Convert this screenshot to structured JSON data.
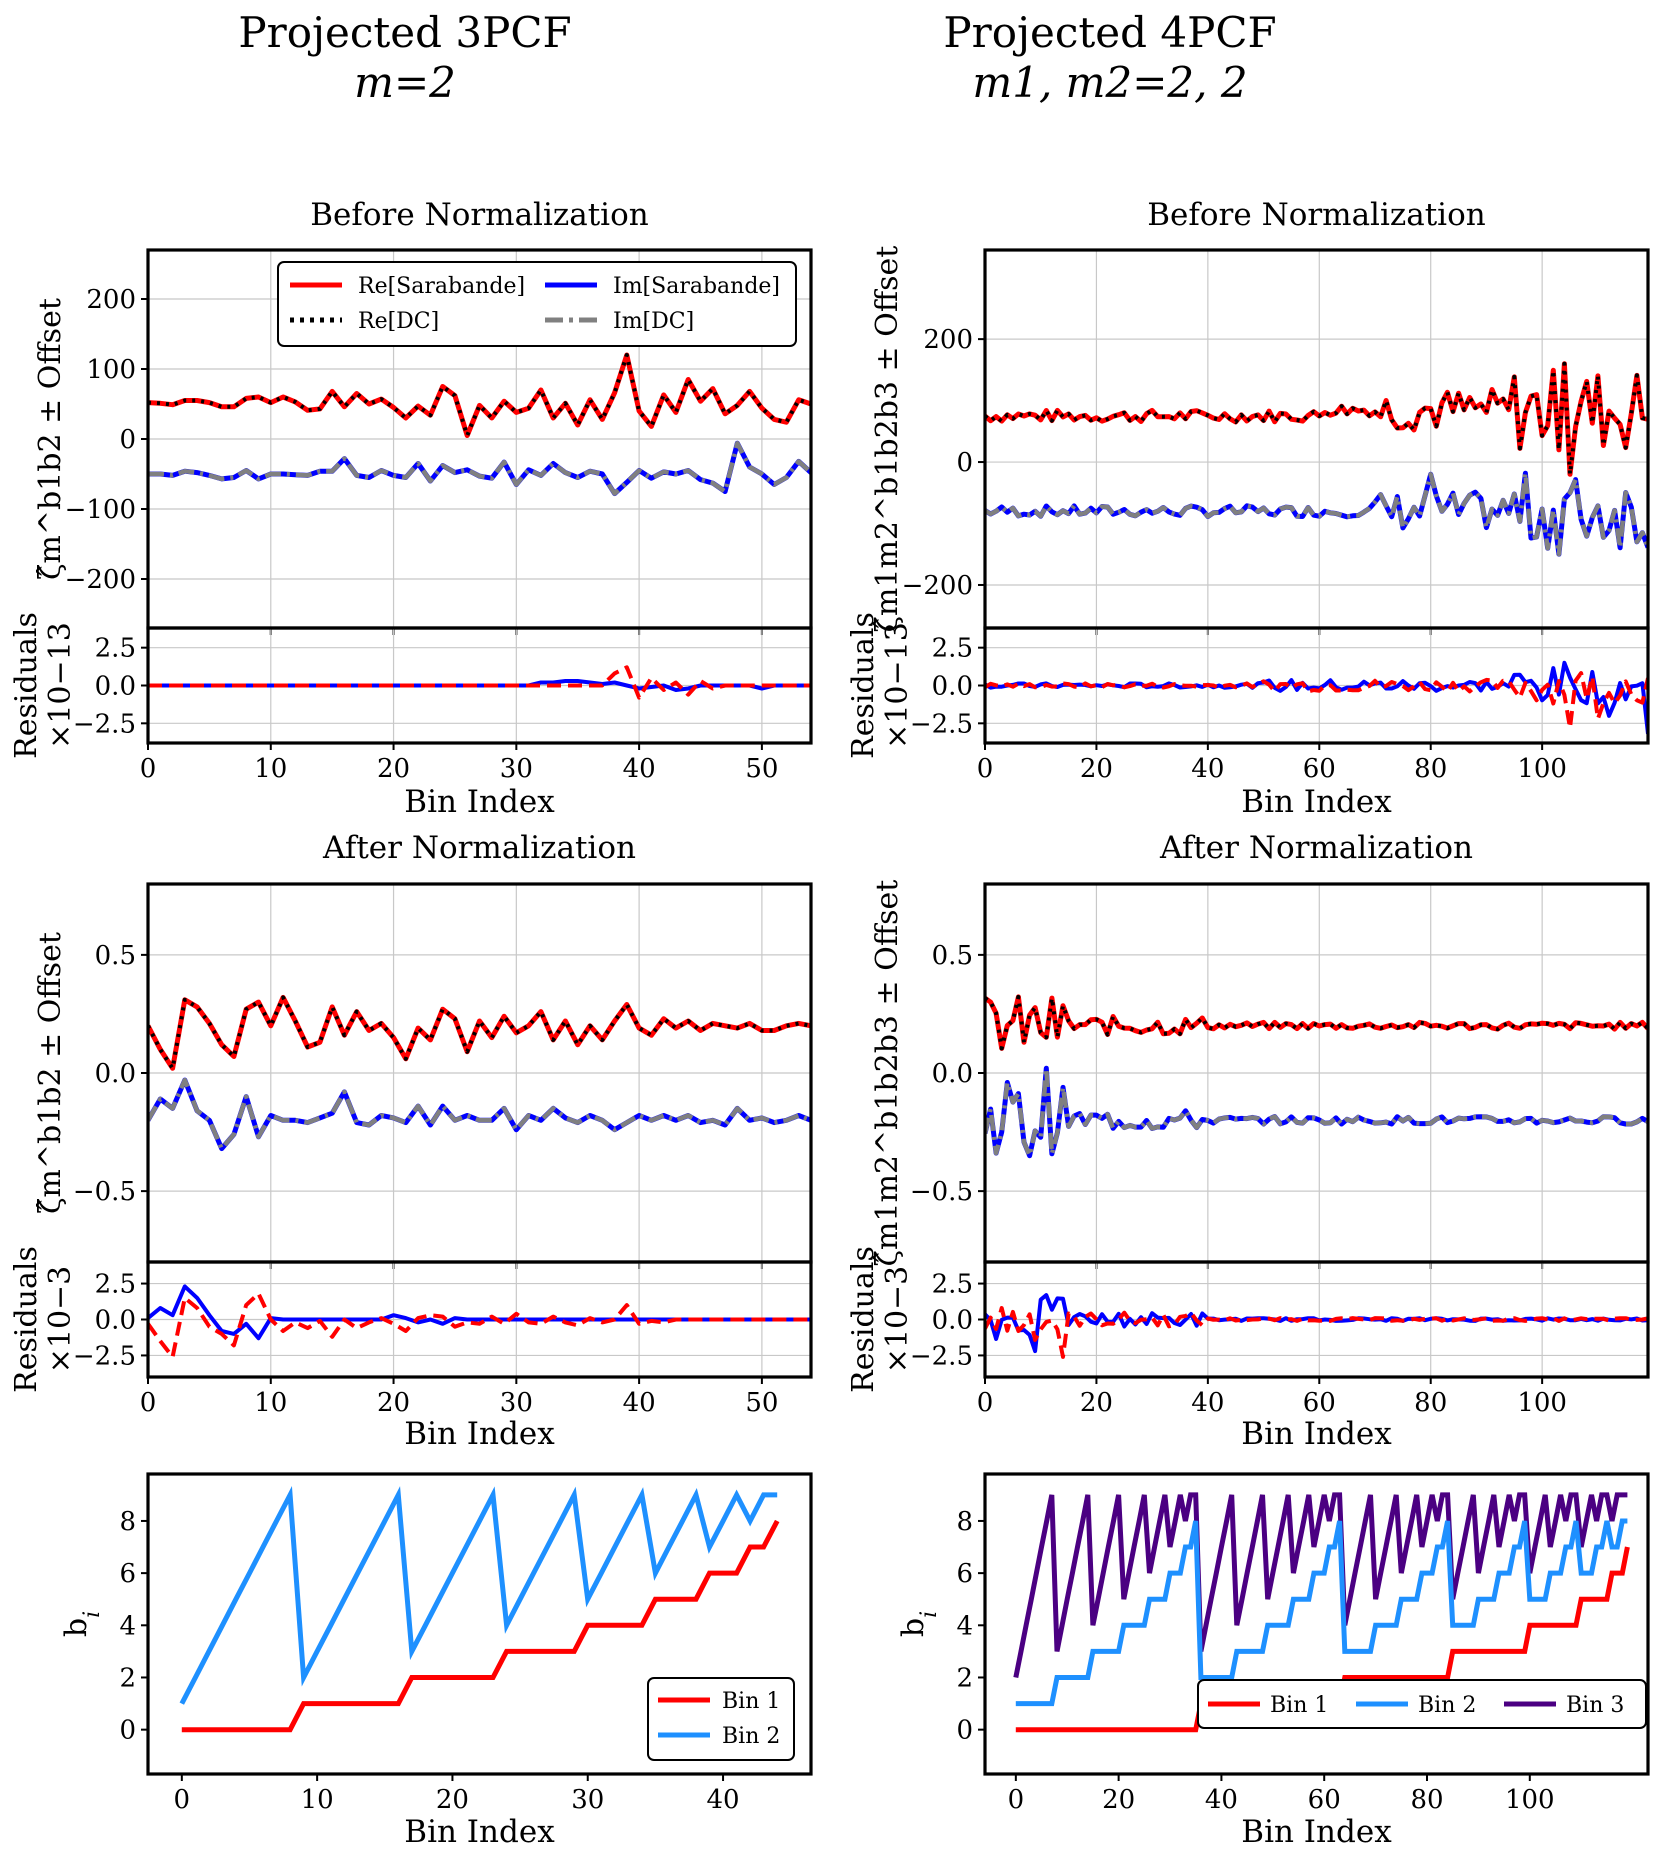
{
  "columns": [
    {
      "title_line1": "Projected 3PCF",
      "title_line2": "m=2"
    },
    {
      "title_line1": "Projected 4PCF",
      "title_line2": "m1, m2=2, 2"
    }
  ],
  "chart_data": [
    {
      "id": "3pcf-before",
      "type": "line",
      "title": "Before Normalization",
      "ylabel": "ζ̂m^b1b2 ± Offset",
      "xlabel": "Bin Index",
      "xlim": [
        0,
        54
      ],
      "ylim": [
        -270,
        270
      ],
      "xticks": [
        0,
        10,
        20,
        30,
        40,
        50
      ],
      "yticks": [
        -200,
        -100,
        0,
        100,
        200
      ],
      "ytick_labels": [
        "−200",
        "−100",
        "0",
        "100",
        "200"
      ],
      "legend": [
        "Re[Sarabande]",
        "Im[Sarabande]",
        "Re[DC]",
        "Im[DC]"
      ],
      "series": [
        {
          "name": "Re[Sarabande]",
          "color": "#ff0000",
          "values": [
            52,
            51,
            49,
            55,
            55,
            52,
            46,
            46,
            58,
            60,
            52,
            60,
            53,
            41,
            43,
            68,
            46,
            65,
            50,
            57,
            45,
            30,
            47,
            34,
            75,
            62,
            5,
            48,
            30,
            54,
            38,
            44,
            70,
            30,
            51,
            20,
            56,
            28,
            66,
            120,
            40,
            18,
            63,
            38,
            85,
            54,
            72,
            36,
            48,
            68,
            44,
            28,
            24,
            56,
            50
          ]
        },
        {
          "name": "Im[Sarabande]",
          "color": "#0000ff",
          "values": [
            -50,
            -50,
            -52,
            -46,
            -48,
            -52,
            -57,
            -55,
            -45,
            -57,
            -50,
            -50,
            -51,
            -52,
            -46,
            -46,
            -28,
            -52,
            -55,
            -45,
            -52,
            -55,
            -35,
            -60,
            -38,
            -48,
            -44,
            -53,
            -56,
            -33,
            -65,
            -44,
            -52,
            -35,
            -48,
            -55,
            -46,
            -50,
            -78,
            -62,
            -45,
            -56,
            -47,
            -50,
            -45,
            -58,
            -63,
            -75,
            -6,
            -40,
            -50,
            -65,
            -55,
            -32,
            -48
          ]
        },
        {
          "name": "Re[DC]",
          "color": "#000000",
          "values": []
        },
        {
          "name": "Im[DC]",
          "color": "#808080",
          "values": []
        }
      ],
      "residual": {
        "ylabel_line1": "Residuals",
        "ylabel_line2": "×10−13",
        "ylim": [
          -3.8,
          3.8
        ],
        "yticks": [
          -2.5,
          0.0,
          2.5
        ],
        "ytick_labels": [
          "−2.5",
          "0.0",
          "2.5"
        ],
        "re": [
          0,
          0,
          0,
          0,
          0,
          0,
          0,
          0,
          0,
          0,
          0,
          0,
          0,
          0,
          0,
          0,
          0,
          0,
          0,
          0,
          0,
          0,
          0,
          0,
          0,
          0,
          0,
          0,
          0,
          0,
          0,
          0,
          0,
          0,
          0,
          0,
          0,
          0,
          0.8,
          1.2,
          -0.8,
          0.5,
          -0.3,
          0.2,
          -0.6,
          0.3,
          -0.2,
          0,
          0,
          0,
          0,
          0,
          0,
          0,
          0
        ],
        "im": [
          0,
          0,
          0,
          0,
          0,
          0,
          0,
          0,
          0,
          0,
          0,
          0,
          0,
          0,
          0,
          0,
          0,
          0,
          0,
          0,
          0,
          0,
          0,
          0,
          0,
          0,
          0,
          0,
          0,
          0,
          0,
          0,
          0.2,
          0.2,
          0.3,
          0.3,
          0.2,
          0.1,
          0.2,
          0,
          -0.2,
          -0.1,
          0,
          -0.3,
          -0.2,
          0,
          0,
          0,
          0,
          0,
          -0.2,
          0,
          0,
          0,
          0
        ]
      }
    },
    {
      "id": "4pcf-before",
      "type": "line",
      "title": "Before Normalization",
      "ylabel": "ζ̂m1m2^b1b2b3 ± Offset",
      "xlabel": "Bin Index",
      "xlim": [
        0,
        119
      ],
      "ylim": [
        -270,
        345
      ],
      "xticks": [
        0,
        20,
        40,
        60,
        80,
        100
      ],
      "yticks": [
        -200,
        0,
        200
      ],
      "ytick_labels": [
        "−200",
        "0",
        "200"
      ],
      "series": [
        {
          "name": "Re[Sarabande]",
          "color": "#ff0000",
          "values": []
        },
        {
          "name": "Im[Sarabande]",
          "color": "#0000ff",
          "values": []
        }
      ],
      "residual": {
        "ylabel_line1": "Residuals",
        "ylabel_line2": "×10−13",
        "ylim": [
          -3.8,
          3.8
        ],
        "yticks": [
          -2.5,
          0.0,
          2.5
        ],
        "ytick_labels": [
          "−2.5",
          "0.0",
          "2.5"
        ],
        "re": [],
        "im": []
      }
    },
    {
      "id": "3pcf-after",
      "type": "line",
      "title": "After Normalization",
      "ylabel": "ζ̂m^b1b2 ± Offset",
      "xlabel": "Bin Index",
      "xlim": [
        0,
        54
      ],
      "ylim": [
        -0.8,
        0.8
      ],
      "xticks": [
        0,
        10,
        20,
        30,
        40,
        50
      ],
      "yticks": [
        -0.5,
        0.0,
        0.5
      ],
      "ytick_labels": [
        "−0.5",
        "0.0",
        "0.5"
      ],
      "series": [
        {
          "name": "Re[Sarabande]",
          "color": "#ff0000",
          "values": [
            0.2,
            0.1,
            0.02,
            0.31,
            0.28,
            0.21,
            0.12,
            0.07,
            0.27,
            0.3,
            0.2,
            0.32,
            0.22,
            0.11,
            0.13,
            0.28,
            0.16,
            0.26,
            0.18,
            0.21,
            0.15,
            0.06,
            0.19,
            0.14,
            0.27,
            0.23,
            0.09,
            0.22,
            0.15,
            0.24,
            0.17,
            0.2,
            0.26,
            0.14,
            0.22,
            0.12,
            0.2,
            0.14,
            0.22,
            0.29,
            0.19,
            0.16,
            0.23,
            0.19,
            0.22,
            0.18,
            0.21,
            0.2,
            0.19,
            0.21,
            0.18,
            0.18,
            0.2,
            0.21,
            0.2
          ]
        },
        {
          "name": "Im[Sarabande]",
          "color": "#0000ff",
          "values": [
            -0.2,
            -0.11,
            -0.15,
            -0.03,
            -0.16,
            -0.2,
            -0.32,
            -0.26,
            -0.1,
            -0.27,
            -0.18,
            -0.2,
            -0.2,
            -0.21,
            -0.19,
            -0.17,
            -0.08,
            -0.21,
            -0.22,
            -0.18,
            -0.19,
            -0.21,
            -0.14,
            -0.22,
            -0.14,
            -0.2,
            -0.18,
            -0.2,
            -0.2,
            -0.15,
            -0.24,
            -0.18,
            -0.2,
            -0.15,
            -0.19,
            -0.21,
            -0.18,
            -0.2,
            -0.24,
            -0.21,
            -0.18,
            -0.2,
            -0.18,
            -0.2,
            -0.18,
            -0.21,
            -0.2,
            -0.22,
            -0.15,
            -0.2,
            -0.19,
            -0.21,
            -0.2,
            -0.18,
            -0.2
          ]
        }
      ],
      "residual": {
        "ylabel_line1": "Residuals",
        "ylabel_line2": "×10−3",
        "ylim": [
          -4.0,
          4.0
        ],
        "yticks": [
          -2.5,
          0.0,
          2.5
        ],
        "ytick_labels": [
          "−2.5",
          "0.0",
          "2.5"
        ],
        "re": [
          -0.3,
          -1.5,
          -2.6,
          1.5,
          0.8,
          -0.5,
          -1.0,
          -1.8,
          1.0,
          1.8,
          0.0,
          -0.8,
          -0.2,
          -0.6,
          -0.1,
          -1.2,
          0.0,
          -0.6,
          -0.2,
          0.1,
          -0.3,
          -0.8,
          0.1,
          0.3,
          0.2,
          -0.5,
          -0.2,
          -0.3,
          0.2,
          -0.3,
          0.4,
          -0.2,
          -0.3,
          0.2,
          -0.2,
          -0.4,
          0.1,
          -0.2,
          0.0,
          1.0,
          -0.3,
          -0.1,
          -0.2,
          0.0,
          0.0,
          0.0,
          0.0,
          0.0,
          0.0,
          0.0,
          0.0,
          0.0,
          0.0,
          0.0,
          0.0
        ],
        "im": [
          0.1,
          0.8,
          0.3,
          2.3,
          1.5,
          0.3,
          -0.8,
          -1.0,
          -0.3,
          -1.3,
          0.1,
          0.0,
          0.0,
          0.0,
          0.0,
          0.0,
          0.0,
          0.0,
          0.0,
          0.0,
          0.3,
          0.1,
          -0.2,
          0.0,
          -0.3,
          0.1,
          0.0,
          0.0,
          0.0,
          0.0,
          0.0,
          0.0,
          0.0,
          0.0,
          0.0,
          0.0,
          0.0,
          0.0,
          0.0,
          0.0,
          0.0,
          0.0,
          0.0,
          0.0,
          0.0,
          0.0,
          0.0,
          0.0,
          0.0,
          0.0,
          0.0,
          0.0,
          0.0,
          0.0,
          0.0
        ]
      }
    },
    {
      "id": "4pcf-after",
      "type": "line",
      "title": "After Normalization",
      "ylabel": "ζ̂m1m2^b1b2b3 ± Offset",
      "xlabel": "Bin Index",
      "xlim": [
        0,
        119
      ],
      "ylim": [
        -0.8,
        0.8
      ],
      "xticks": [
        0,
        20,
        40,
        60,
        80,
        100
      ],
      "yticks": [
        -0.5,
        0.0,
        0.5
      ],
      "ytick_labels": [
        "−0.5",
        "0.0",
        "0.5"
      ],
      "series": [
        {
          "name": "Re[Sarabande]",
          "color": "#ff0000",
          "values": []
        },
        {
          "name": "Im[Sarabande]",
          "color": "#0000ff",
          "values": []
        }
      ],
      "residual": {
        "ylabel_line1": "Residuals",
        "ylabel_line2": "×10−3",
        "ylim": [
          -4.0,
          4.0
        ],
        "yticks": [
          -2.5,
          0.0,
          2.5
        ],
        "ytick_labels": [
          "−2.5",
          "0.0",
          "2.5"
        ],
        "re": [],
        "im": []
      }
    },
    {
      "id": "3pcf-bins",
      "type": "line",
      "ylabel": "bi",
      "xlabel": "Bin Index",
      "xlim": [
        -2.5,
        46.5
      ],
      "ylim": [
        -1.7,
        9.8
      ],
      "xticks": [
        0,
        10,
        20,
        30,
        40
      ],
      "yticks": [
        0,
        2,
        4,
        6,
        8
      ],
      "legend": [
        "Bin 1",
        "Bin 2"
      ],
      "series": [
        {
          "name": "Bin 1",
          "color": "#ff0000",
          "values": [
            0,
            0,
            0,
            0,
            0,
            0,
            0,
            0,
            0,
            1,
            1,
            1,
            1,
            1,
            1,
            1,
            1,
            2,
            2,
            2,
            2,
            2,
            2,
            2,
            3,
            3,
            3,
            3,
            3,
            3,
            4,
            4,
            4,
            4,
            4,
            5,
            5,
            5,
            5,
            6,
            6,
            6,
            7,
            7,
            8
          ]
        },
        {
          "name": "Bin 2",
          "color": "#1e90ff",
          "values": [
            1,
            2,
            3,
            4,
            5,
            6,
            7,
            8,
            9,
            2,
            3,
            4,
            5,
            6,
            7,
            8,
            9,
            3,
            4,
            5,
            6,
            7,
            8,
            9,
            4,
            5,
            6,
            7,
            8,
            9,
            5,
            6,
            7,
            8,
            9,
            6,
            7,
            8,
            9,
            7,
            8,
            9,
            8,
            9,
            9
          ]
        }
      ]
    },
    {
      "id": "4pcf-bins",
      "type": "line",
      "ylabel": "bi",
      "xlabel": "Bin Index",
      "xlim": [
        -6,
        123
      ],
      "ylim": [
        -1.7,
        9.8
      ],
      "xticks": [
        0,
        20,
        40,
        60,
        80,
        100
      ],
      "yticks": [
        0,
        2,
        4,
        6,
        8
      ],
      "legend": [
        "Bin 1",
        "Bin 2",
        "Bin 3"
      ],
      "series": [
        {
          "name": "Bin 1",
          "color": "#ff0000",
          "values": []
        },
        {
          "name": "Bin 2",
          "color": "#1e90ff",
          "values": []
        },
        {
          "name": "Bin 3",
          "color": "#4b0082",
          "values": []
        }
      ]
    }
  ]
}
